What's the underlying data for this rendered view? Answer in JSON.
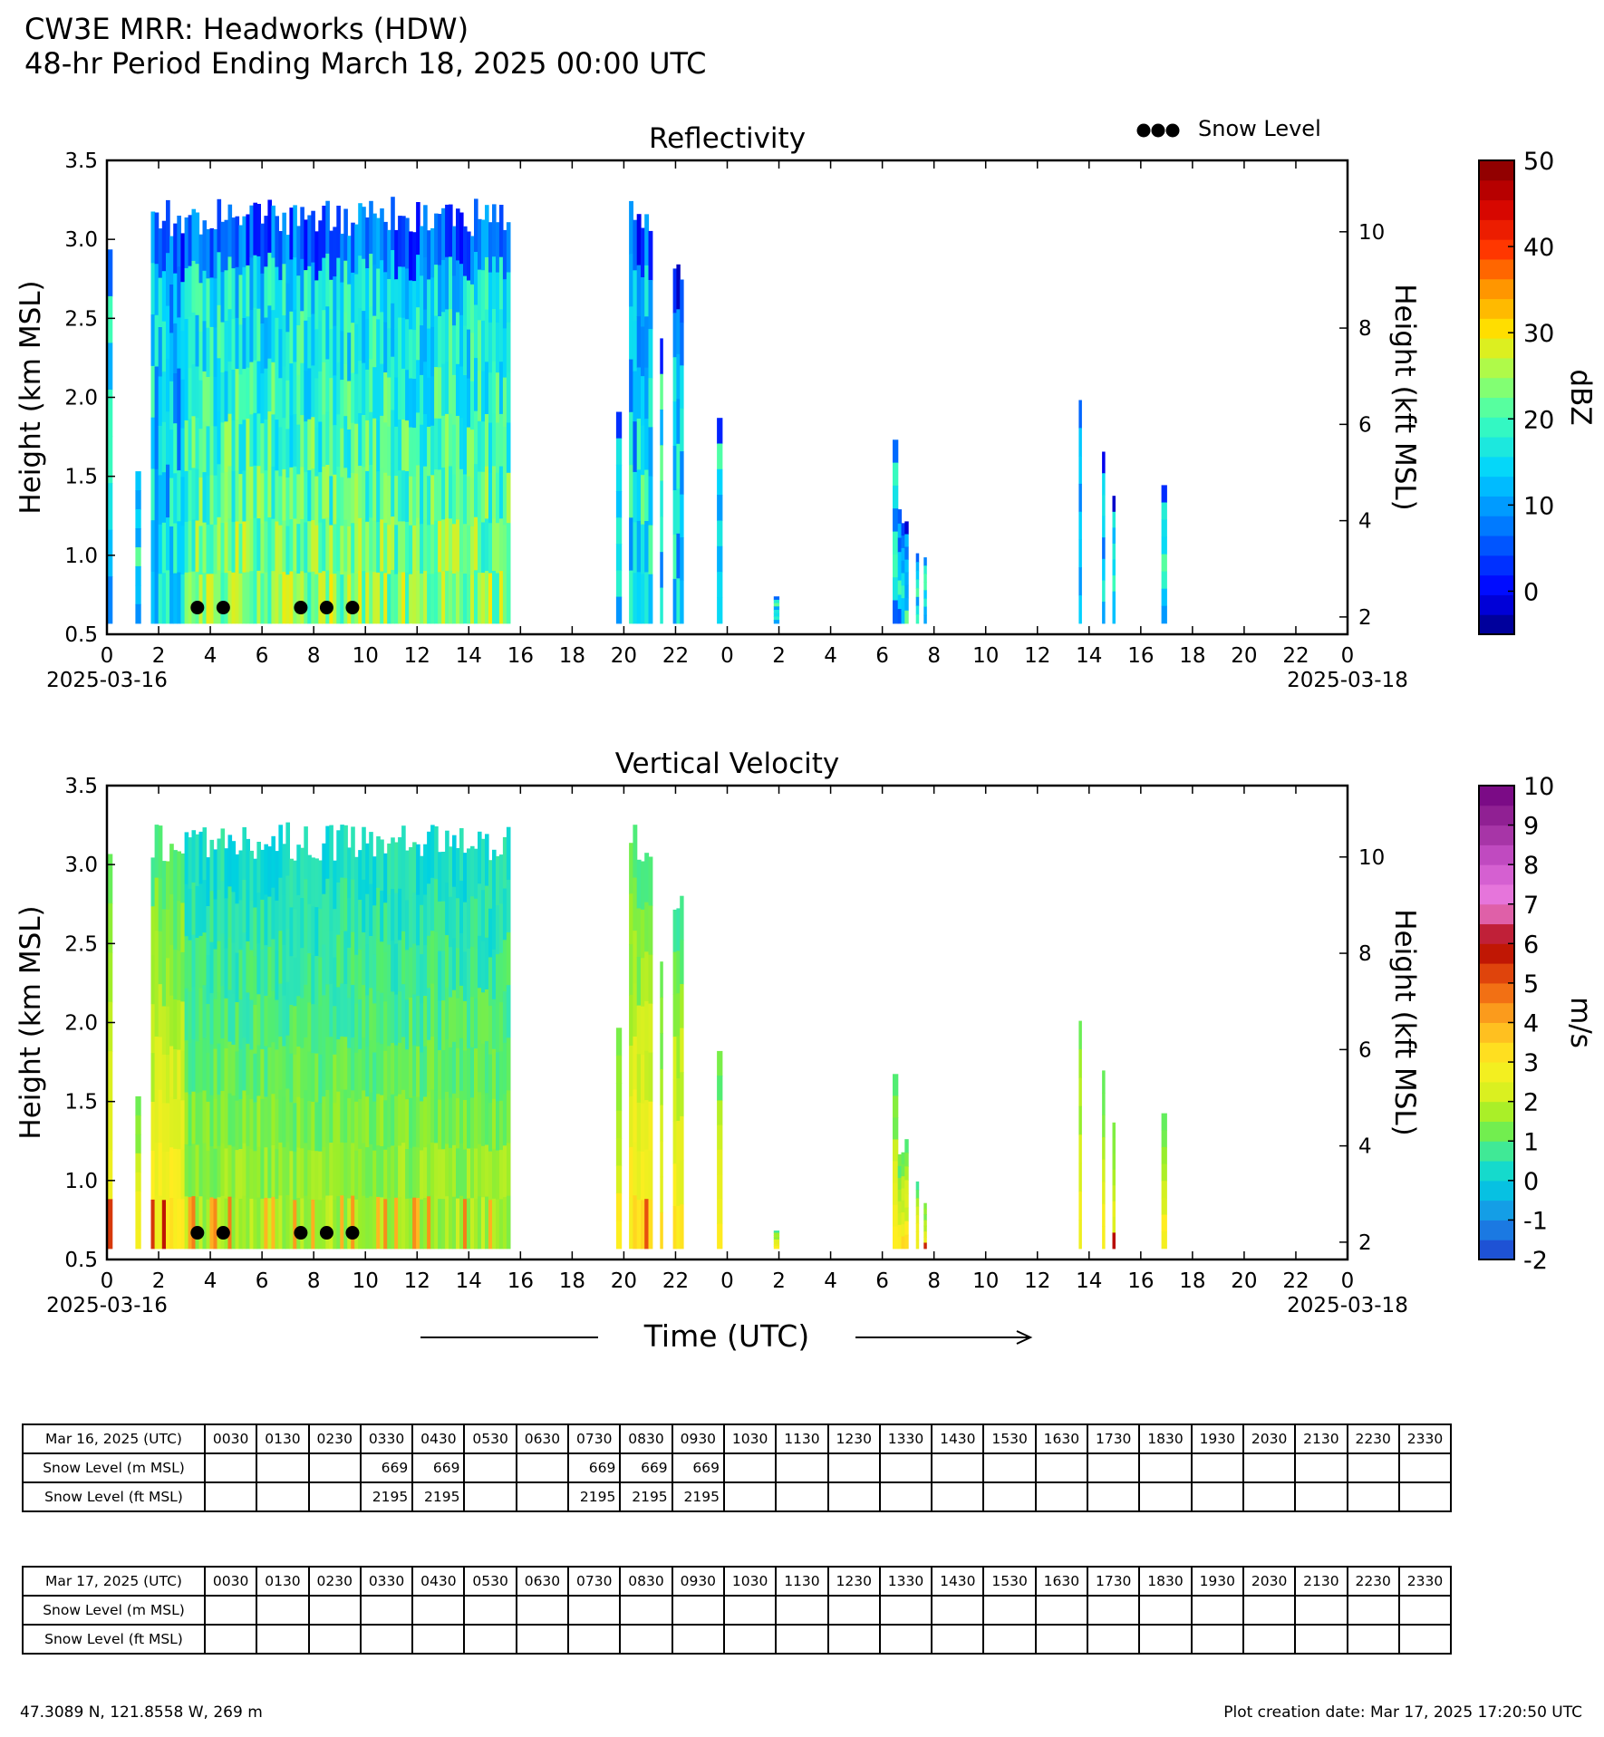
{
  "header": {
    "title_line1": "CW3E MRR: Headworks (HDW)",
    "title_line2": "48-hr Period Ending March 18, 2025 00:00 UTC"
  },
  "legend": {
    "snow_level_label": "Snow Level"
  },
  "xaxis": {
    "xlabel": "Time (UTC)",
    "ticks": [
      "0",
      "2",
      "4",
      "6",
      "8",
      "10",
      "12",
      "14",
      "16",
      "18",
      "20",
      "22",
      "0",
      "2",
      "4",
      "6",
      "8",
      "10",
      "12",
      "14",
      "16",
      "18",
      "20",
      "22",
      "0"
    ],
    "start_date": "2025-03-16",
    "end_date": "2025-03-18"
  },
  "chart_data": [
    {
      "type": "heatmap",
      "title": "Reflectivity",
      "ylabel": "Height (km MSL)",
      "ylabel_right": "Height (kft MSL)",
      "ylim": [
        0.5,
        3.5
      ],
      "yticks": [
        "0.5",
        "1.0",
        "1.5",
        "2.0",
        "2.5",
        "3.0",
        "3.5"
      ],
      "yticks_right": [
        "2",
        "4",
        "6",
        "8",
        "10"
      ],
      "colorbar": {
        "label": "dBZ",
        "range": [
          -5,
          50
        ],
        "ticks": [
          "0",
          "10",
          "20",
          "30",
          "40",
          "50"
        ]
      },
      "snow_level_points": [
        {
          "hour": 3.5,
          "km": 0.669
        },
        {
          "hour": 4.5,
          "km": 0.669
        },
        {
          "hour": 7.5,
          "km": 0.669
        },
        {
          "hour": 8.5,
          "km": 0.669
        },
        {
          "hour": 9.5,
          "km": 0.669
        }
      ]
    },
    {
      "type": "heatmap",
      "title": "Vertical Velocity",
      "ylabel": "Height (km MSL)",
      "ylabel_right": "Height (kft MSL)",
      "ylim": [
        0.5,
        3.5
      ],
      "yticks": [
        "0.5",
        "1.0",
        "1.5",
        "2.0",
        "2.5",
        "3.0",
        "3.5"
      ],
      "yticks_right": [
        "2",
        "4",
        "6",
        "8",
        "10"
      ],
      "colorbar": {
        "label": "m/s",
        "range": [
          -2,
          10
        ],
        "ticks": [
          "-2",
          "-1",
          "0",
          "1",
          "2",
          "3",
          "4",
          "5",
          "6",
          "7",
          "8",
          "9",
          "10"
        ]
      },
      "snow_level_points": [
        {
          "hour": 3.5,
          "km": 0.669
        },
        {
          "hour": 4.5,
          "km": 0.669
        },
        {
          "hour": 7.5,
          "km": 0.669
        },
        {
          "hour": 8.5,
          "km": 0.669
        },
        {
          "hour": 9.5,
          "km": 0.669
        }
      ]
    }
  ],
  "tables": [
    {
      "date_label": "Mar 16, 2025 (UTC)",
      "times": [
        "0030",
        "0130",
        "0230",
        "0330",
        "0430",
        "0530",
        "0630",
        "0730",
        "0830",
        "0930",
        "1030",
        "1130",
        "1230",
        "1330",
        "1430",
        "1530",
        "1630",
        "1730",
        "1830",
        "1930",
        "2030",
        "2130",
        "2230",
        "2330"
      ],
      "rows": [
        {
          "label": "Snow Level (m MSL)",
          "values": [
            "",
            "",
            "",
            "669",
            "669",
            "",
            "",
            "669",
            "669",
            "669",
            "",
            "",
            "",
            "",
            "",
            "",
            "",
            "",
            "",
            "",
            "",
            "",
            "",
            ""
          ]
        },
        {
          "label": "Snow Level (ft MSL)",
          "values": [
            "",
            "",
            "",
            "2195",
            "2195",
            "",
            "",
            "2195",
            "2195",
            "2195",
            "",
            "",
            "",
            "",
            "",
            "",
            "",
            "",
            "",
            "",
            "",
            "",
            "",
            ""
          ]
        }
      ]
    },
    {
      "date_label": "Mar 17, 2025 (UTC)",
      "times": [
        "0030",
        "0130",
        "0230",
        "0330",
        "0430",
        "0530",
        "0630",
        "0730",
        "0830",
        "0930",
        "1030",
        "1130",
        "1230",
        "1330",
        "1430",
        "1530",
        "1630",
        "1730",
        "1830",
        "1930",
        "2030",
        "2130",
        "2230",
        "2330"
      ],
      "rows": [
        {
          "label": "Snow Level (m MSL)",
          "values": [
            "",
            "",
            "",
            "",
            "",
            "",
            "",
            "",
            "",
            "",
            "",
            "",
            "",
            "",
            "",
            "",
            "",
            "",
            "",
            "",
            "",
            "",
            "",
            ""
          ]
        },
        {
          "label": "Snow Level (ft MSL)",
          "values": [
            "",
            "",
            "",
            "",
            "",
            "",
            "",
            "",
            "",
            "",
            "",
            "",
            "",
            "",
            "",
            "",
            "",
            "",
            "",
            "",
            "",
            "",
            "",
            ""
          ]
        }
      ]
    }
  ],
  "footer": {
    "location": "47.3089 N, 121.8558 W, 269 m",
    "creation": "Plot creation date: Mar 17, 2025 17:20:50 UTC"
  }
}
